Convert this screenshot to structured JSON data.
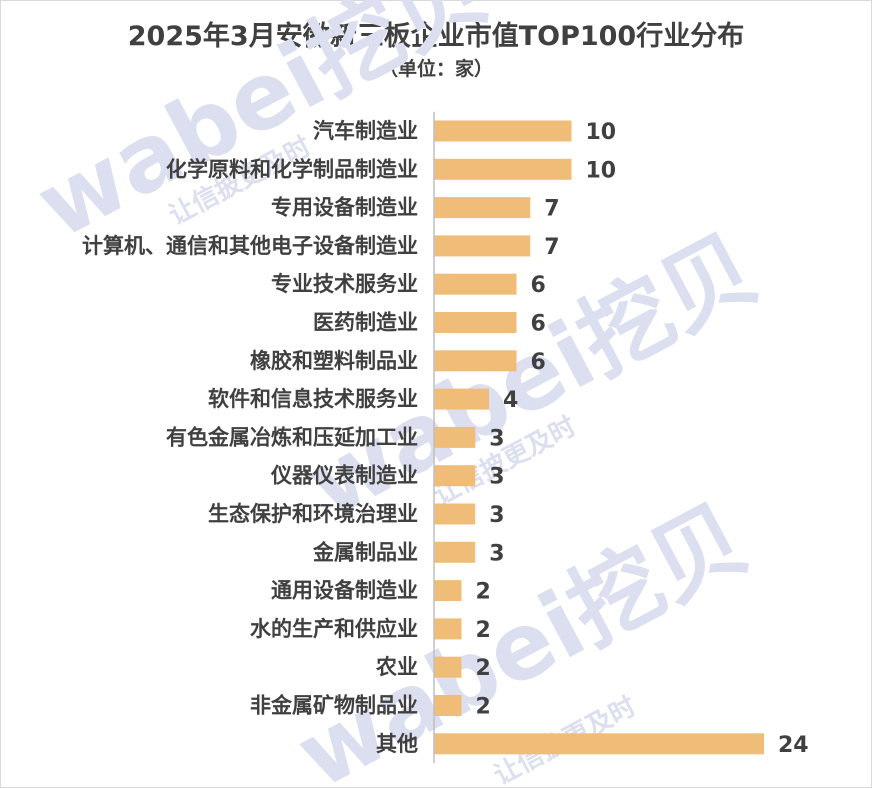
{
  "title": "2025年3月安徽新三板企业市值TOP100行业分布",
  "subtitle": "（单位：家）",
  "watermark": {
    "logo": "wabei挖贝",
    "slogan": "让信披更及时"
  },
  "colors": {
    "bar": "#f0bd78",
    "axis": "#bfbfbf",
    "text": "#404040",
    "watermark": "#dcdfef"
  },
  "chart_data": {
    "type": "bar",
    "orientation": "horizontal",
    "title": "2025年3月安徽新三板企业市值TOP100行业分布",
    "subtitle": "（单位：家）",
    "categories": [
      "汽车制造业",
      "化学原料和化学制品制造业",
      "专用设备制造业",
      "计算机、通信和其他电子设备制造业",
      "专业技术服务业",
      "医药制造业",
      "橡胶和塑料制品业",
      "软件和信息技术服务业",
      "有色金属冶炼和压延加工业",
      "仪器仪表制造业",
      "生态保护和环境治理业",
      "金属制品业",
      "通用设备制造业",
      "水的生产和供应业",
      "农业",
      "非金属矿物制品业",
      "其他"
    ],
    "values": [
      10,
      10,
      7,
      7,
      6,
      6,
      6,
      4,
      3,
      3,
      3,
      3,
      2,
      2,
      2,
      2,
      24
    ],
    "data_labels": [
      "10",
      "10",
      "7",
      "7",
      "6",
      "6",
      "6",
      "4",
      "3",
      "3",
      "3",
      "3",
      "2",
      "2",
      "2",
      "2",
      "24"
    ],
    "xlim": [
      0,
      24
    ],
    "grid": false,
    "legend": "none"
  }
}
